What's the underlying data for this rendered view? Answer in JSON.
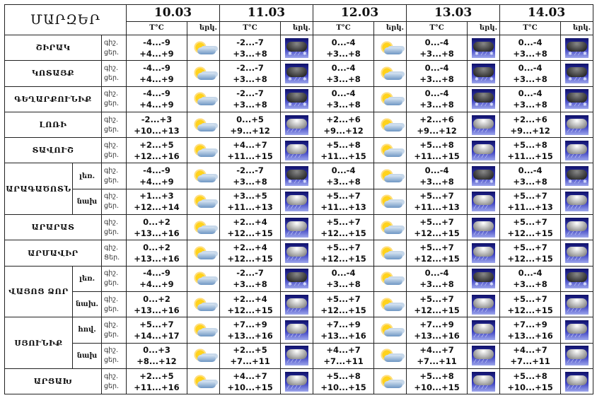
{
  "header": {
    "regions_label": "ՄԱՐԶԵՐ",
    "temp_label": "T°C",
    "weather_label": "երկ.",
    "dates": [
      "10.03",
      "11.03",
      "12.03",
      "13.03",
      "14.03"
    ]
  },
  "icons": {
    "pc": "partly-cloudy-icon",
    "rain": "rain-cloud-icon",
    "snow": "snow-rain-cloud-icon"
  },
  "rows": [
    {
      "region": "ՇԻՐԱԿ",
      "night": "գիշ.",
      "day": "ցեր.",
      "days": [
        {
          "n": "-4...-9",
          "d": "+4...+9",
          "icon": "pc"
        },
        {
          "n": "-2...-7",
          "d": "+3...+8",
          "icon": "snow"
        },
        {
          "n": "0...-4",
          "d": "+3...+8",
          "icon": "pc"
        },
        {
          "n": "0...-4",
          "d": "+3...+8",
          "icon": "snow"
        },
        {
          "n": "0...-4",
          "d": "+3...+8",
          "icon": "snow"
        }
      ]
    },
    {
      "region": "ԿՈՏԱՅՔ",
      "night": "գիշ.",
      "day": "ցեր.",
      "days": [
        {
          "n": "-4...-9",
          "d": "+4...+9",
          "icon": "pc"
        },
        {
          "n": "-2...-7",
          "d": "+3...+8",
          "icon": "snow"
        },
        {
          "n": "0...-4",
          "d": "+3...+8",
          "icon": "pc"
        },
        {
          "n": "0...-4",
          "d": "+3...+8",
          "icon": "snow"
        },
        {
          "n": "0...-4",
          "d": "+3...+8",
          "icon": "snow"
        }
      ]
    },
    {
      "region": "ԳԵՂԱՐՔՈՒՆԻՔ",
      "night": "գիշ.",
      "day": "ցեր.",
      "days": [
        {
          "n": "-4...-9",
          "d": "+4...+9",
          "icon": "pc"
        },
        {
          "n": "-2...-7",
          "d": "+3...+8",
          "icon": "snow"
        },
        {
          "n": "0...-4",
          "d": "+3...+8",
          "icon": "pc"
        },
        {
          "n": "0...-4",
          "d": "+3...+8",
          "icon": "snow"
        },
        {
          "n": "0...-4",
          "d": "+3...+8",
          "icon": "snow"
        }
      ]
    },
    {
      "region": "ԼՈՌԻ",
      "night": "գիշ.",
      "day": "ցեր.",
      "days": [
        {
          "n": "-2...+3",
          "d": "+10...+13",
          "icon": "pc"
        },
        {
          "n": "0...+5",
          "d": "+9...+12",
          "icon": "rain"
        },
        {
          "n": "+2...+6",
          "d": "+9...+12",
          "icon": "pc"
        },
        {
          "n": "+2...+6",
          "d": "+9...+12",
          "icon": "rain"
        },
        {
          "n": "+2...+6",
          "d": "+9...+12",
          "icon": "rain"
        }
      ]
    },
    {
      "region": "ՏԱՎՈՒՇ",
      "night": "գիշ.",
      "day": "ցեր.",
      "days": [
        {
          "n": "+2...+5",
          "d": "+12...+16",
          "icon": "pc"
        },
        {
          "n": "+4...+7",
          "d": "+11...+15",
          "icon": "rain"
        },
        {
          "n": "+5...+8",
          "d": "+11...+15",
          "icon": "pc"
        },
        {
          "n": "+5...+8",
          "d": "+11...+15",
          "icon": "rain"
        },
        {
          "n": "+5...+8",
          "d": "+11...+15",
          "icon": "rain"
        }
      ]
    },
    {
      "region": "ԱՐԱԳԱԾՈՏՆ",
      "span": 2,
      "sub": "լեռ.",
      "night": "գիշ.",
      "day": "ցեր.",
      "days": [
        {
          "n": "-4...-9",
          "d": "+4...+9",
          "icon": "pc"
        },
        {
          "n": "-2...-7",
          "d": "+3...+8",
          "icon": "snow"
        },
        {
          "n": "0...-4",
          "d": "+3...+8",
          "icon": "pc"
        },
        {
          "n": "0...-4",
          "d": "+3...+8",
          "icon": "snow"
        },
        {
          "n": "0...-4",
          "d": "+3...+8",
          "icon": "snow"
        }
      ]
    },
    {
      "sub": "նախ",
      "night": "գիշ.",
      "day": "ցեր.",
      "days": [
        {
          "n": "+1...+3",
          "d": "+12...+14",
          "icon": "pc"
        },
        {
          "n": "+3...+5",
          "d": "+11...+13",
          "icon": "rain"
        },
        {
          "n": "+5...+7",
          "d": "+11...+13",
          "icon": "pc"
        },
        {
          "n": "+5...+7",
          "d": "+11...+13",
          "icon": "rain"
        },
        {
          "n": "+5...+7",
          "d": "+11...+13",
          "icon": "rain"
        }
      ]
    },
    {
      "region": "ԱՐԱՐԱՏ",
      "night": "գիշ.",
      "day": "ցեր.",
      "days": [
        {
          "n": "0...+2",
          "d": "+13...+16",
          "icon": "pc"
        },
        {
          "n": "+2...+4",
          "d": "+12...+15",
          "icon": "rain"
        },
        {
          "n": "+5...+7",
          "d": "+12...+15",
          "icon": "pc"
        },
        {
          "n": "+5...+7",
          "d": "+12...+15",
          "icon": "rain"
        },
        {
          "n": "+5...+7",
          "d": "+12...+15",
          "icon": "rain"
        }
      ]
    },
    {
      "region": "ԱՐՄԱՎԻՐ",
      "night": "գիշ.",
      "day": "Ցեր.",
      "days": [
        {
          "n": "0...+2",
          "d": "+13...+16",
          "icon": "pc"
        },
        {
          "n": "+2...+4",
          "d": "+12...+15",
          "icon": "rain"
        },
        {
          "n": "+5...+7",
          "d": "+12...+15",
          "icon": "pc"
        },
        {
          "n": "+5...+7",
          "d": "+12...+15",
          "icon": "rain"
        },
        {
          "n": "+5...+7",
          "d": "+12...+15",
          "icon": "rain"
        }
      ]
    },
    {
      "region": "ՎԱՅՈՑ ՁՈՐ",
      "span": 2,
      "sub": "լեռ.",
      "night": "գիշ.",
      "day": "ցեր.",
      "days": [
        {
          "n": "-4...-9",
          "d": "+4...+9",
          "icon": "pc"
        },
        {
          "n": "-2...-7",
          "d": "+3...+8",
          "icon": "snow"
        },
        {
          "n": "0...-4",
          "d": "+3...+8",
          "icon": "pc"
        },
        {
          "n": "0...-4",
          "d": "+3...+8",
          "icon": "snow"
        },
        {
          "n": "0...-4",
          "d": "+3...+8",
          "icon": "snow"
        }
      ]
    },
    {
      "sub": "նախ.",
      "night": "գիշ.",
      "day": "ցեր.",
      "days": [
        {
          "n": "0...+2",
          "d": "+13...+16",
          "icon": "pc"
        },
        {
          "n": "+2...+4",
          "d": "+12...+15",
          "icon": "rain"
        },
        {
          "n": "+5...+7",
          "d": "+12...+15",
          "icon": "pc"
        },
        {
          "n": "+5...+7",
          "d": "+12...+15",
          "icon": "rain"
        },
        {
          "n": "+5...+7",
          "d": "+12...+15",
          "icon": "rain"
        }
      ]
    },
    {
      "region": "ՍՅՈՒՆԻՔ",
      "span": 2,
      "sub": "հով.",
      "night": "գիշ.",
      "day": "ցեր.",
      "days": [
        {
          "n": "+5...+7",
          "d": "+14...+17",
          "icon": "pc"
        },
        {
          "n": "+7...+9",
          "d": "+13...+16",
          "icon": "rain"
        },
        {
          "n": "+7...+9",
          "d": "+13...+16",
          "icon": "pc"
        },
        {
          "n": "+7...+9",
          "d": "+13...+16",
          "icon": "rain"
        },
        {
          "n": "+7...+9",
          "d": "+13...+16",
          "icon": "rain"
        }
      ]
    },
    {
      "sub": "նախ",
      "night": "գիշ.",
      "day": "ցեր.",
      "days": [
        {
          "n": "0...+3",
          "d": "+8...+12",
          "icon": "pc"
        },
        {
          "n": "+2...+5",
          "d": "+7...+11",
          "icon": "rain"
        },
        {
          "n": "+4...+7",
          "d": "+7...+11",
          "icon": "pc"
        },
        {
          "n": "+4...+7",
          "d": "+7...+11",
          "icon": "rain"
        },
        {
          "n": "+4...+7",
          "d": "+7...+11",
          "icon": "rain"
        }
      ]
    },
    {
      "region": "ԱՐՑԱԽ",
      "night": "գիշ.",
      "day": "ցեր.",
      "days": [
        {
          "n": "+2...+5",
          "d": "+11...+16",
          "icon": "pc"
        },
        {
          "n": "+4...+7",
          "d": "+10...+15",
          "icon": "rain"
        },
        {
          "n": "+5...+8",
          "d": "+10...+15",
          "icon": "pc"
        },
        {
          "n": "+5...+8",
          "d": "+10...+15",
          "icon": "rain"
        },
        {
          "n": "+5...+8",
          "d": "+10...+15",
          "icon": "rain"
        }
      ]
    }
  ]
}
